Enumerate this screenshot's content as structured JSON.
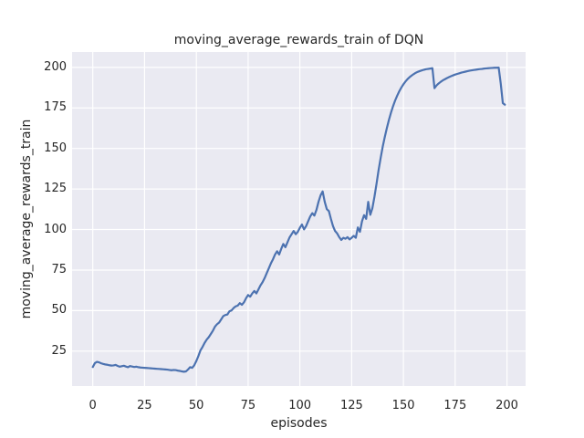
{
  "chart_data": {
    "type": "line",
    "title": "moving_average_rewards_train of DQN",
    "xlabel": "episodes",
    "ylabel": "moving_average_rewards_train",
    "x_ticks": [
      0,
      25,
      50,
      75,
      100,
      125,
      150,
      175,
      200
    ],
    "y_ticks": [
      25,
      50,
      75,
      100,
      125,
      150,
      175,
      200
    ],
    "xlim": [
      -10,
      209
    ],
    "ylim": [
      3.5,
      209.5
    ],
    "grid": true,
    "legend": "none",
    "plot_bg": "#eaeaf2",
    "grid_color": "#ffffff",
    "line_color": "#4c72b0",
    "text_color": "#262626",
    "series": [
      {
        "name": "moving_average_rewards_train",
        "x_start": 0,
        "x_step": 1,
        "values": [
          15.2,
          17.6,
          18.4,
          18.1,
          17.5,
          17.1,
          16.8,
          16.6,
          16.3,
          16.1,
          16.2,
          16.5,
          15.9,
          15.4,
          15.7,
          16.0,
          15.5,
          15.1,
          15.8,
          15.5,
          15.2,
          15.4,
          15.1,
          14.9,
          14.8,
          14.7,
          14.6,
          14.5,
          14.4,
          14.3,
          14.2,
          14.1,
          14.0,
          13.9,
          13.8,
          13.7,
          13.6,
          13.4,
          13.2,
          13.4,
          13.3,
          13.0,
          12.8,
          12.5,
          12.3,
          12.5,
          13.7,
          15.1,
          14.7,
          16.3,
          18.9,
          22.0,
          25.5,
          27.6,
          30.1,
          32.1,
          33.6,
          35.6,
          37.6,
          40.1,
          41.6,
          42.6,
          44.6,
          46.6,
          47.3,
          47.6,
          49.6,
          50.1,
          51.6,
          52.6,
          53.1,
          54.6,
          53.6,
          55.1,
          57.6,
          59.6,
          58.6,
          60.6,
          62.1,
          60.6,
          63.1,
          65.6,
          67.6,
          70.1,
          73.1,
          76.1,
          79.1,
          81.6,
          84.6,
          86.6,
          84.6,
          88.1,
          91.1,
          89.1,
          92.1,
          95.1,
          97.1,
          99.1,
          97.1,
          98.6,
          101.1,
          103.1,
          100.1,
          102.1,
          105.1,
          108.1,
          110.1,
          108.6,
          112.1,
          117.1,
          121.1,
          123.5,
          117.1,
          112.6,
          111.4,
          106.5,
          102.1,
          99.1,
          97.6,
          95.3,
          93.6,
          94.9,
          94.3,
          95.3,
          93.9,
          94.9,
          96.1,
          94.9,
          101.3,
          98.6,
          105.1,
          108.9,
          106.6,
          117.1,
          109.1,
          113.1,
          120.1,
          128.1,
          136.6,
          144.1,
          151.1,
          157.1,
          162.6,
          167.6,
          172.1,
          176.1,
          179.6,
          182.6,
          185.3,
          187.6,
          189.6,
          191.3,
          192.8,
          194.0,
          195.0,
          195.9,
          196.7,
          197.3,
          197.8,
          198.2,
          198.6,
          198.9,
          199.1,
          199.3,
          199.5,
          187.2,
          188.9,
          190.1,
          191.1,
          192.0,
          192.7,
          193.4,
          194.0,
          194.6,
          195.1,
          195.6,
          196.0,
          196.4,
          196.8,
          197.1,
          197.4,
          197.7,
          198.0,
          198.2,
          198.4,
          198.6,
          198.8,
          199.0,
          199.1,
          199.3,
          199.4,
          199.5,
          199.6,
          199.7,
          199.8,
          199.8,
          199.9,
          190.0,
          178.0,
          177.0
        ]
      }
    ]
  }
}
